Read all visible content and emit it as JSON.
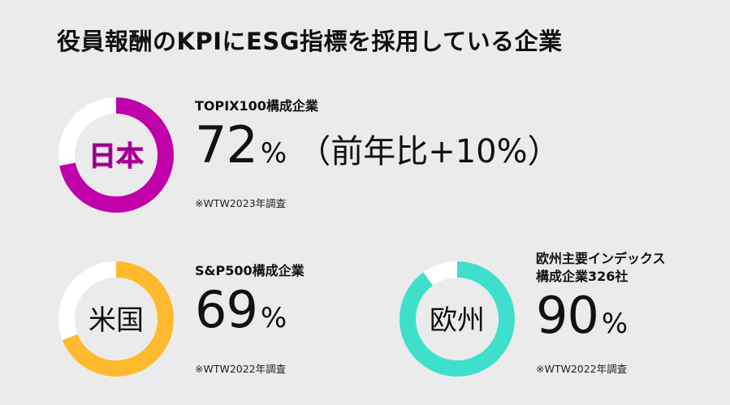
{
  "title": "役員報酬のKPIにESG指標を採用している企業",
  "colors": {
    "background": "#ebebeb",
    "track": "#ffffff",
    "japan": "#c000a8",
    "us": "#ffb92e",
    "europe": "#3ee0cc"
  },
  "japan": {
    "label": "日本",
    "caption": "TOPIX100構成企業",
    "value": "72",
    "unit": "%",
    "extra": "（前年比+10%）",
    "source": "※WTW2023年調査"
  },
  "us": {
    "label": "米国",
    "caption": "S&P500構成企業",
    "value": "69",
    "unit": "%",
    "source": "※WTW2022年調査"
  },
  "europe": {
    "label": "欧州",
    "caption_line1": "欧州主要インデックス",
    "caption_line2": "構成企業326社",
    "value": "90",
    "unit": "%",
    "source": "※WTW2022年調査"
  },
  "chart_data": {
    "type": "pie",
    "title": "役員報酬のKPIにESG指標を採用している企業",
    "series": [
      {
        "name": "日本",
        "values": [
          72,
          28
        ]
      },
      {
        "name": "米国",
        "values": [
          69,
          31
        ]
      },
      {
        "name": "欧州",
        "values": [
          90,
          10
        ]
      }
    ]
  }
}
